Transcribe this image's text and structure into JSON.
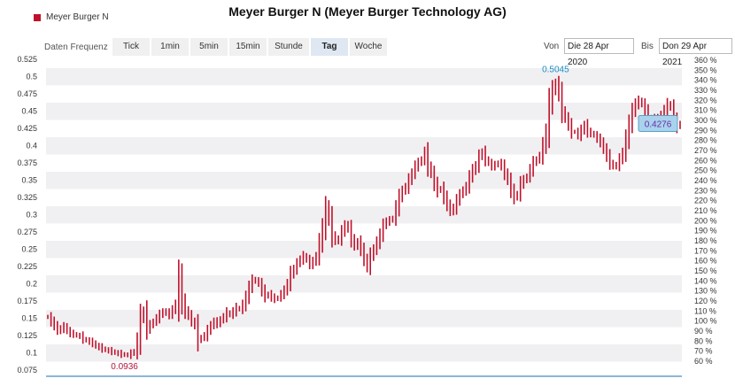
{
  "title": "Meyer Burger N (Meyer Burger Technology AG)",
  "legend": {
    "label": "Meyer Burger N",
    "color": "#c0112b"
  },
  "frequency": {
    "label": "Daten Frequenz",
    "buttons": [
      "Tick",
      "1min",
      "5min",
      "15min",
      "Stunde",
      "Tag",
      "Woche"
    ],
    "active": "Tag"
  },
  "range": {
    "from_label": "Von",
    "from_value": "Die 28 Apr 2020",
    "to_label": "Bis",
    "to_value": "Don 29 Apr 2021"
  },
  "chart_data": {
    "type": "ohlc",
    "title": "",
    "y_left_ticks": [
      "0.525",
      "0.5",
      "0.475",
      "0.45",
      "0.425",
      "0.4",
      "0.375",
      "0.35",
      "0.325",
      "0.3",
      "0.275",
      "0.25",
      "0.225",
      "0.2",
      "0.175",
      "0.15",
      "0.125",
      "0.1",
      "0.075"
    ],
    "y_right_ticks": [
      "360 %",
      "350 %",
      "340 %",
      "330 %",
      "320 %",
      "310 %",
      "300 %",
      "290 %",
      "280 %",
      "270 %",
      "260 %",
      "250 %",
      "240 %",
      "230 %",
      "220 %",
      "210 %",
      "200 %",
      "190 %",
      "180 %",
      "170 %",
      "160 %",
      "150 %",
      "140 %",
      "130 %",
      "120 %",
      "110 %",
      "100 %",
      "90 %",
      "80 %",
      "70 %",
      "60 %"
    ],
    "ylim": [
      0.07,
      0.525
    ],
    "series_color": "#c0112b",
    "max_label": "0.5045",
    "min_label": "0.0936",
    "current_label": "0.4276",
    "values": [
      0.152,
      0.145,
      0.14,
      0.132,
      0.135,
      0.138,
      0.132,
      0.128,
      0.127,
      0.125,
      0.124,
      0.12,
      0.118,
      0.116,
      0.114,
      0.11,
      0.108,
      0.106,
      0.104,
      0.103,
      0.102,
      0.1,
      0.099,
      0.098,
      0.097,
      0.097,
      0.099,
      0.102,
      0.118,
      0.15,
      0.16,
      0.135,
      0.14,
      0.145,
      0.15,
      0.155,
      0.16,
      0.158,
      0.155,
      0.163,
      0.17,
      0.21,
      0.175,
      0.16,
      0.155,
      0.145,
      0.14,
      0.118,
      0.122,
      0.125,
      0.132,
      0.14,
      0.145,
      0.142,
      0.148,
      0.152,
      0.158,
      0.155,
      0.16,
      0.165,
      0.163,
      0.17,
      0.18,
      0.195,
      0.205,
      0.205,
      0.2,
      0.19,
      0.182,
      0.185,
      0.18,
      0.178,
      0.18,
      0.185,
      0.19,
      0.2,
      0.215,
      0.22,
      0.23,
      0.235,
      0.24,
      0.235,
      0.228,
      0.232,
      0.24,
      0.26,
      0.28,
      0.31,
      0.295,
      0.27,
      0.262,
      0.265,
      0.275,
      0.285,
      0.28,
      0.265,
      0.255,
      0.26,
      0.25,
      0.235,
      0.225,
      0.24,
      0.25,
      0.26,
      0.27,
      0.285,
      0.29,
      0.292,
      0.295,
      0.31,
      0.325,
      0.335,
      0.34,
      0.35,
      0.36,
      0.37,
      0.375,
      0.38,
      0.39,
      0.37,
      0.36,
      0.345,
      0.335,
      0.338,
      0.325,
      0.315,
      0.305,
      0.31,
      0.32,
      0.33,
      0.335,
      0.34,
      0.355,
      0.365,
      0.37,
      0.385,
      0.39,
      0.38,
      0.375,
      0.37,
      0.372,
      0.375,
      0.37,
      0.36,
      0.35,
      0.335,
      0.325,
      0.33,
      0.345,
      0.35,
      0.355,
      0.365,
      0.375,
      0.38,
      0.385,
      0.4,
      0.42,
      0.46,
      0.48,
      0.49,
      0.475,
      0.45,
      0.44,
      0.43,
      0.42,
      0.42,
      0.415,
      0.422,
      0.43,
      0.42,
      0.418,
      0.415,
      0.41,
      0.405,
      0.395,
      0.385,
      0.375,
      0.37,
      0.372,
      0.38,
      0.39,
      0.41,
      0.43,
      0.45,
      0.46,
      0.465,
      0.46,
      0.45,
      0.44,
      0.435,
      0.44,
      0.438,
      0.445,
      0.452,
      0.46,
      0.455,
      0.438,
      0.428,
      0.432
    ]
  }
}
